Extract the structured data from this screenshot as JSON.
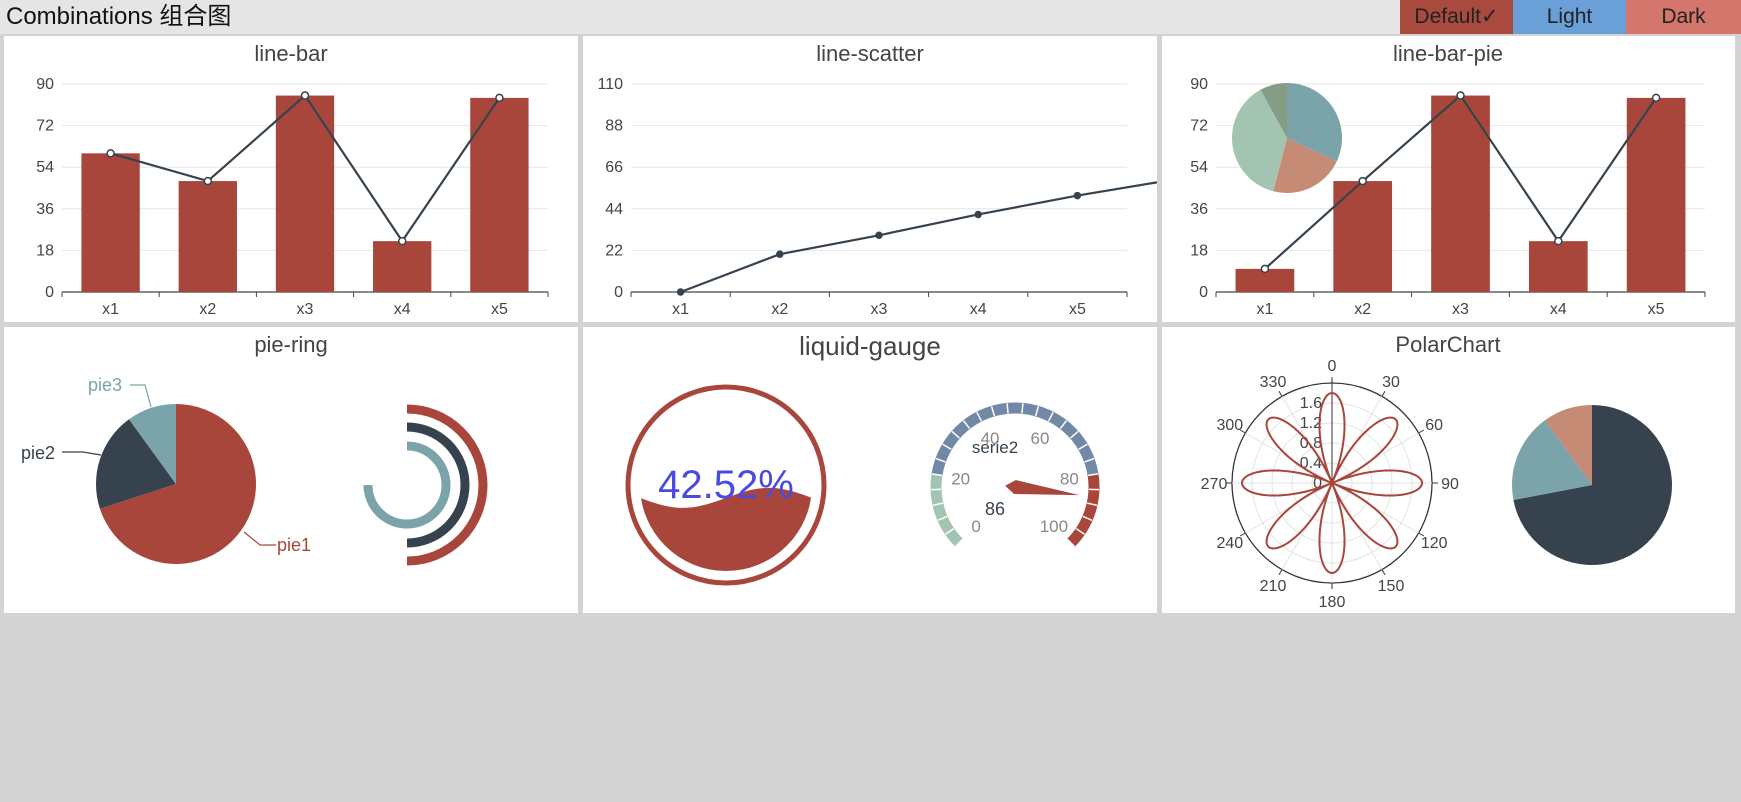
{
  "app": {
    "title": "Combinations 组合图"
  },
  "themes": [
    {
      "label": "Default✓",
      "color": "#a84a3e"
    },
    {
      "label": "Light",
      "color": "#6a9fd8"
    },
    {
      "label": "Dark",
      "color": "#d4766b"
    }
  ],
  "colors": {
    "red": "#a9463c",
    "navy": "#36434f",
    "teal": "#7aa3aa",
    "salmon": "#c58b75",
    "mint": "#a2c4b0",
    "sage": "#859d84",
    "slate": "#7188a7",
    "gauge_text": "#4a4ae0"
  },
  "charts": {
    "line_bar": {
      "chart_data": {
        "type": "bar+line",
        "title": "line-bar",
        "categories": [
          "x1",
          "x2",
          "x3",
          "x4",
          "x5"
        ],
        "series": [
          {
            "type": "bar",
            "values": [
              60,
              48,
              85,
              22,
              84
            ]
          },
          {
            "type": "line",
            "values": [
              60,
              48,
              85,
              22,
              84
            ]
          }
        ],
        "ylim": [
          0,
          90
        ],
        "yticks": [
          "0",
          "18",
          "36",
          "54",
          "72",
          "90"
        ]
      }
    },
    "line_scatter": {
      "chart_data": {
        "type": "line",
        "title": "line-scatter",
        "categories": [
          "x1",
          "x2",
          "x3",
          "x4",
          "x5"
        ],
        "series": [
          {
            "type": "line",
            "values": [
              0,
              20,
              30,
              41,
              51
            ]
          }
        ],
        "extends_to_right_edge": 58,
        "ylim": [
          0,
          110
        ],
        "yticks": [
          "0",
          "22",
          "44",
          "66",
          "88",
          "110"
        ]
      }
    },
    "line_bar_pie": {
      "chart_data": {
        "type": "bar+line+pie",
        "title": "line-bar-pie",
        "categories": [
          "x1",
          "x2",
          "x3",
          "x4",
          "x5"
        ],
        "series": [
          {
            "type": "bar",
            "values": [
              10,
              48,
              85,
              22,
              84
            ]
          },
          {
            "type": "line",
            "values": [
              10,
              48,
              85,
              22,
              84
            ]
          }
        ],
        "pie": [
          32,
          22,
          38,
          8
        ],
        "ylim": [
          0,
          90
        ],
        "yticks": [
          "0",
          "18",
          "36",
          "54",
          "72",
          "90"
        ]
      }
    },
    "pie_ring": {
      "chart_data": {
        "type": "pie",
        "title": "pie-ring",
        "slices": [
          {
            "name": "pie1",
            "value": 70
          },
          {
            "name": "pie2",
            "value": 20
          },
          {
            "name": "pie3",
            "value": 10
          }
        ],
        "rings": [
          {
            "fraction": 0.5,
            "color": "red"
          },
          {
            "fraction": 0.5,
            "color": "navy"
          },
          {
            "fraction": 0.75,
            "color": "teal"
          }
        ]
      }
    },
    "liquid_gauge": {
      "chart_data": {
        "type": "gauge",
        "title": "liquid-gauge",
        "liquid_text": "42.52%",
        "liquid_value": 0.4252,
        "gauge": {
          "series_name": "serie2",
          "value": 86,
          "value_text": "86",
          "min": 0,
          "max": 100,
          "ticks": [
            "0",
            "20",
            "40",
            "60",
            "80",
            "100"
          ]
        }
      }
    },
    "polar": {
      "chart_data": {
        "type": "polar+pie",
        "title": "PolarChart",
        "angle_ticks": [
          "0",
          "30",
          "60",
          "90",
          "120",
          "150",
          "180",
          "210",
          "240",
          "270",
          "300",
          "330"
        ],
        "radius_ticks": [
          "0",
          "0.4",
          "0.8",
          "1.2",
          "1.6"
        ],
        "rmax": 2.0,
        "rose_petals": 8,
        "pie": [
          72,
          18,
          10
        ]
      }
    }
  }
}
